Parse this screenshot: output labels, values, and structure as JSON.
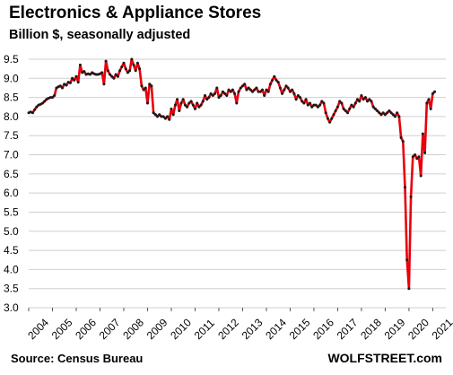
{
  "header": {
    "title": "Electronics & Appliance Stores",
    "subtitle": "Billion $, seasonally adjusted"
  },
  "footer": {
    "source": "Source: Census Bureau",
    "brand": "WOLFSTREET.com"
  },
  "colors": {
    "line": "#e8000b",
    "markers": "#1a1a1a",
    "grid": "#cfcfcf"
  },
  "chart_data": {
    "type": "line",
    "title": "Electronics & Appliance Stores",
    "subtitle": "Billion $, seasonally adjusted",
    "xlabel": "",
    "ylabel": "",
    "x_start": "2004-01",
    "x_frequency": "monthly",
    "xlim": [
      2004,
      2021.55
    ],
    "ylim": [
      3.0,
      9.5
    ],
    "x_ticks": [
      "2004",
      "2005",
      "2006",
      "2007",
      "2008",
      "2009",
      "2010",
      "2011",
      "2012",
      "2013",
      "2014",
      "2015",
      "2016",
      "2017",
      "2018",
      "2019",
      "2020",
      "2021"
    ],
    "y_ticks": [
      "3.0",
      "3.5",
      "4.0",
      "4.5",
      "5.0",
      "5.5",
      "6.0",
      "6.5",
      "7.0",
      "7.5",
      "8.0",
      "8.5",
      "9.0",
      "9.5"
    ],
    "grid": "horizontal",
    "markers": true,
    "series": [
      {
        "values": [
          8.1,
          8.12,
          8.1,
          8.18,
          8.25,
          8.3,
          8.32,
          8.35,
          8.4,
          8.45,
          8.48,
          8.5,
          8.5,
          8.55,
          8.75,
          8.78,
          8.8,
          8.75,
          8.85,
          8.82,
          8.9,
          8.88,
          9.0,
          8.95,
          9.05,
          8.9,
          9.35,
          9.15,
          9.18,
          9.1,
          9.12,
          9.1,
          9.15,
          9.12,
          9.1,
          9.1,
          9.12,
          9.15,
          8.85,
          9.45,
          9.2,
          9.1,
          9.05,
          9.0,
          9.1,
          9.05,
          9.2,
          9.3,
          9.4,
          9.25,
          9.15,
          9.2,
          9.5,
          9.35,
          9.2,
          9.4,
          9.25,
          8.8,
          8.7,
          8.75,
          8.35,
          8.85,
          8.8,
          8.1,
          8.05,
          8.0,
          8.05,
          8.0,
          8.0,
          7.95,
          8.0,
          7.92,
          8.2,
          8.05,
          8.3,
          8.45,
          8.15,
          8.35,
          8.45,
          8.3,
          8.25,
          8.35,
          8.4,
          8.3,
          8.2,
          8.35,
          8.25,
          8.3,
          8.4,
          8.55,
          8.45,
          8.5,
          8.6,
          8.55,
          8.6,
          8.75,
          8.5,
          8.55,
          8.65,
          8.6,
          8.55,
          8.7,
          8.65,
          8.7,
          8.6,
          8.35,
          8.65,
          8.75,
          8.8,
          8.85,
          8.7,
          8.75,
          8.7,
          8.65,
          8.7,
          8.75,
          8.65,
          8.65,
          8.7,
          8.55,
          8.7,
          8.65,
          8.85,
          8.95,
          9.05,
          8.95,
          8.9,
          8.75,
          8.6,
          8.7,
          8.8,
          8.75,
          8.65,
          8.7,
          8.6,
          8.45,
          8.55,
          8.5,
          8.4,
          8.35,
          8.45,
          8.3,
          8.35,
          8.25,
          8.3,
          8.3,
          8.25,
          8.3,
          8.4,
          8.35,
          8.1,
          7.95,
          7.85,
          7.95,
          8.05,
          8.15,
          8.25,
          8.4,
          8.35,
          8.2,
          8.15,
          8.1,
          8.2,
          8.3,
          8.25,
          8.35,
          8.45,
          8.4,
          8.55,
          8.45,
          8.5,
          8.4,
          8.45,
          8.4,
          8.25,
          8.2,
          8.15,
          8.1,
          8.05,
          8.1,
          8.05,
          8.1,
          8.15,
          8.1,
          8.05,
          8.0,
          8.1,
          8.0,
          7.45,
          7.35,
          6.15,
          4.25,
          3.5,
          5.9,
          6.95,
          7.0,
          6.9,
          6.95,
          6.45,
          7.55,
          7.05,
          8.35,
          8.45,
          8.2,
          8.6,
          8.65
        ]
      }
    ]
  }
}
